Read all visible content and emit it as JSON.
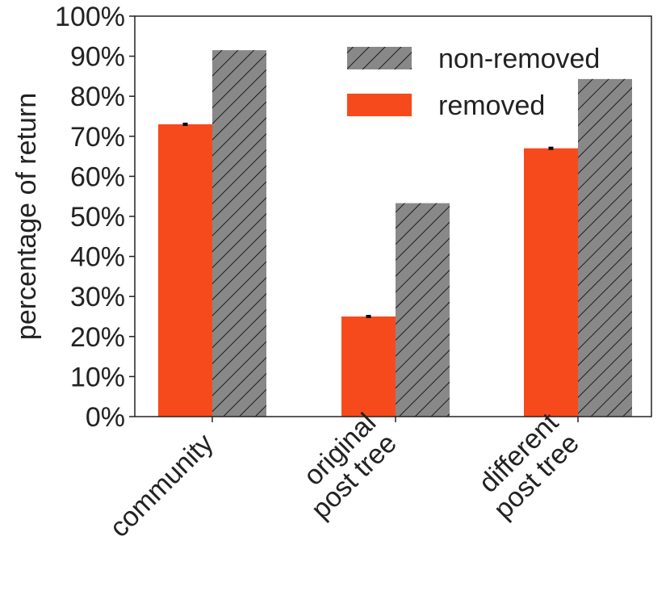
{
  "chart_data": {
    "type": "bar",
    "ylabel": "percentage of return",
    "categories": [
      "community",
      "original\npost tree",
      "different\npost tree"
    ],
    "series": [
      {
        "name": "removed",
        "color": "#f74a1c",
        "values": [
          73,
          25,
          67
        ],
        "errors": [
          0.2,
          0.2,
          0.2
        ]
      },
      {
        "name": "non-removed",
        "color": "#888888",
        "hatch": "//",
        "values": [
          91.5,
          53.3,
          84.3
        ]
      }
    ],
    "ylim": [
      0,
      100
    ],
    "yticks": [
      {
        "value": 0,
        "label": "0%"
      },
      {
        "value": 10,
        "label": "10%"
      },
      {
        "value": 20,
        "label": "20%"
      },
      {
        "value": 30,
        "label": "30%"
      },
      {
        "value": 40,
        "label": "40%"
      },
      {
        "value": 50,
        "label": "50%"
      },
      {
        "value": 60,
        "label": "60%"
      },
      {
        "value": 70,
        "label": "70%"
      },
      {
        "value": 80,
        "label": "80%"
      },
      {
        "value": 90,
        "label": "90%"
      },
      {
        "value": 100,
        "label": "100%"
      }
    ],
    "grid": false,
    "legend": "upper right"
  }
}
